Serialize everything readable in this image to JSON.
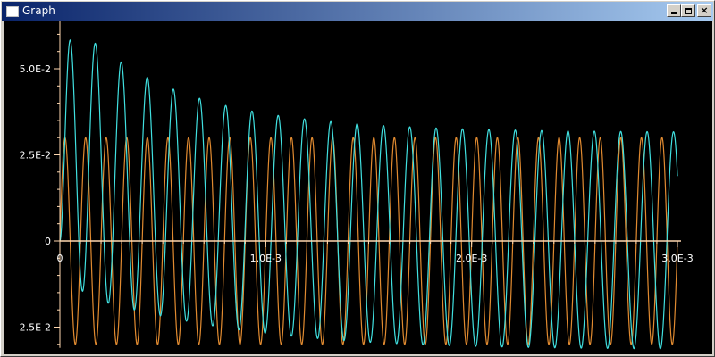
{
  "window": {
    "title": "Graph",
    "controls": {
      "minimize": "minimize",
      "maximize": "maximize",
      "close": "×"
    }
  },
  "colors": {
    "background": "#000000",
    "axis": "#ffd8b0",
    "series_cyan": "#40e0e0",
    "series_orange": "#e08a30"
  },
  "chart_data": {
    "type": "line",
    "title": "",
    "xlabel": "",
    "ylabel": "",
    "xlim": [
      0,
      0.003
    ],
    "ylim": [
      -0.03,
      0.063
    ],
    "grid": false,
    "x_ticks": [
      {
        "value": 0,
        "label": "0"
      },
      {
        "value": 0.001,
        "label": "1.0E-3"
      },
      {
        "value": 0.002,
        "label": "2.0E-3"
      },
      {
        "value": 0.003,
        "label": "3.0E-3"
      }
    ],
    "y_ticks": [
      {
        "value": 0.05,
        "label": "5.0E-2"
      },
      {
        "value": 0.025,
        "label": "2.5E-2"
      },
      {
        "value": 0,
        "label": "0"
      },
      {
        "value": -0.025,
        "label": "-2.5E-2"
      }
    ],
    "series": [
      {
        "color": "#e08a30",
        "form": "sine",
        "frequency_hz": 10000,
        "amplitude": 0.03,
        "offset": 0
      },
      {
        "color": "#40e0e0",
        "form": "decaying-offset-sine",
        "frequency_hz": 7800,
        "steady_amplitude": 0.0315,
        "decay_amplitude": 0.027,
        "decay_time_s": 0.0006,
        "offset": 0,
        "peaks": [
          {
            "x": 0.000105,
            "y": 0.0595
          },
          {
            "x": 0.00031,
            "y": 0.055
          },
          {
            "x": 0.00051,
            "y": 0.051
          },
          {
            "x": 0.00071,
            "y": 0.047
          },
          {
            "x": 0.00091,
            "y": 0.0445
          },
          {
            "x": 0.0011,
            "y": 0.042
          },
          {
            "x": 0.0013,
            "y": 0.04
          },
          {
            "x": 0.0015,
            "y": 0.0385
          },
          {
            "x": 0.0017,
            "y": 0.037
          },
          {
            "x": 0.0019,
            "y": 0.036
          },
          {
            "x": 0.0021,
            "y": 0.035
          },
          {
            "x": 0.0023,
            "y": 0.0345
          },
          {
            "x": 0.0025,
            "y": 0.034
          },
          {
            "x": 0.0027,
            "y": 0.0335
          },
          {
            "x": 0.0029,
            "y": 0.033
          }
        ]
      }
    ]
  }
}
